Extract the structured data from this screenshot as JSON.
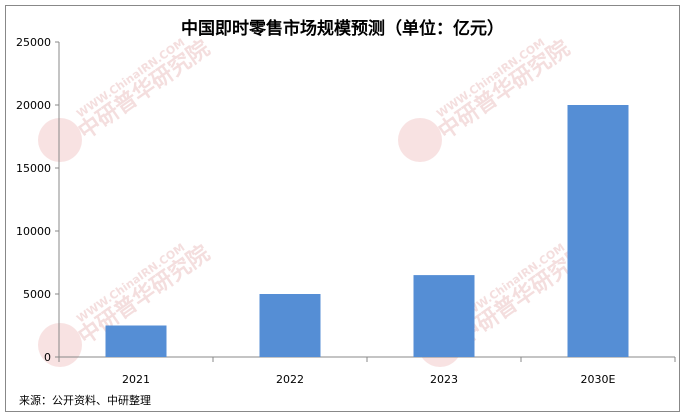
{
  "chart_data": {
    "type": "bar",
    "title": "中国即时零售市场规模预测（单位：亿元）",
    "categories": [
      "2021",
      "2022",
      "2023",
      "2030E"
    ],
    "values": [
      2500,
      5000,
      6500,
      20000
    ],
    "ylim": [
      0,
      25000
    ],
    "yticks": [
      0,
      5000,
      10000,
      15000,
      20000,
      25000
    ],
    "xlabel": "",
    "ylabel": "",
    "grid": false,
    "bar_color": "#558ed5"
  },
  "source": "来源：公开资料、中研整理",
  "watermark": {
    "text": "中研普华研究院",
    "url": "WWW.ChinaIRN.COM",
    "logo": "CIRN"
  }
}
